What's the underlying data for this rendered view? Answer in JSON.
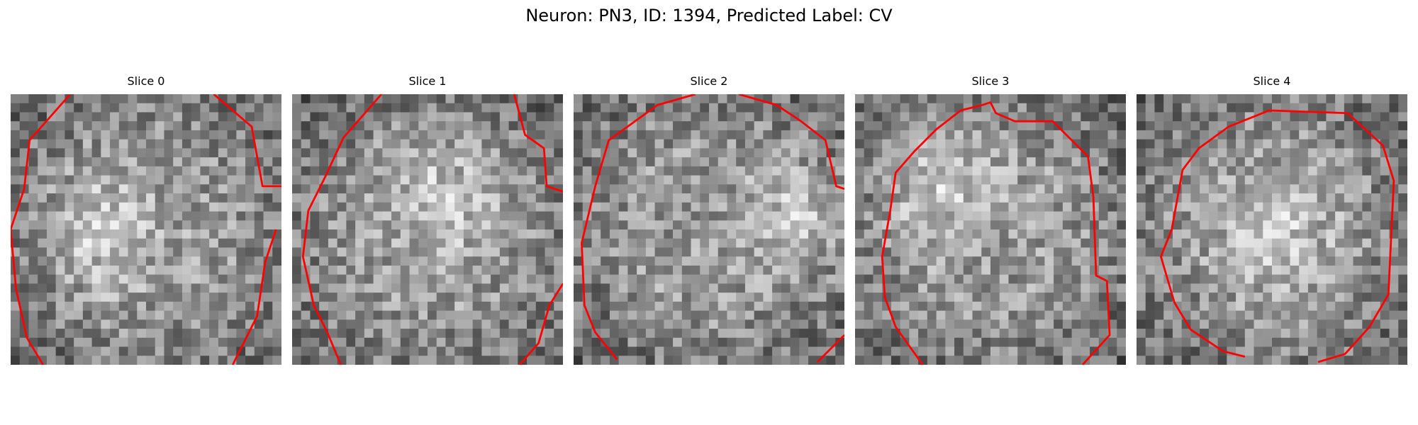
{
  "figure": {
    "title": "Neuron: PN3, ID: 1394, Predicted Label: CV",
    "contour_color": "#ff0000"
  },
  "slices": [
    {
      "title": "Slice 0",
      "bright_patch": [
        0.35,
        0.5
      ],
      "contour": [
        [
          0.22,
          0.0
        ],
        [
          0.07,
          0.17
        ],
        [
          0.05,
          0.35
        ],
        [
          0.0,
          0.5
        ],
        [
          0.02,
          0.72
        ],
        [
          0.06,
          0.9
        ],
        [
          0.12,
          1.0
        ],
        null,
        [
          0.75,
          0.0
        ],
        [
          0.89,
          0.12
        ],
        [
          0.93,
          0.34
        ],
        [
          1.0,
          0.34
        ],
        null,
        [
          0.98,
          0.5
        ],
        [
          0.94,
          0.62
        ],
        [
          0.91,
          0.82
        ],
        [
          0.82,
          1.0
        ]
      ]
    },
    {
      "title": "Slice 1",
      "bright_patch": [
        0.55,
        0.4
      ],
      "contour": [
        [
          0.33,
          0.0
        ],
        [
          0.19,
          0.16
        ],
        [
          0.12,
          0.31
        ],
        [
          0.06,
          0.43
        ],
        [
          0.04,
          0.6
        ],
        [
          0.08,
          0.78
        ],
        [
          0.13,
          0.88
        ],
        [
          0.18,
          1.0
        ],
        null,
        [
          0.82,
          0.0
        ],
        [
          0.86,
          0.15
        ],
        [
          0.93,
          0.2
        ],
        [
          0.94,
          0.34
        ],
        [
          1.0,
          0.36
        ],
        null,
        [
          1.0,
          0.7
        ],
        [
          0.95,
          0.78
        ],
        [
          0.91,
          0.92
        ],
        [
          0.84,
          1.0
        ]
      ]
    },
    {
      "title": "Slice 2",
      "bright_patch": [
        0.85,
        0.45
      ],
      "contour": [
        [
          0.45,
          0.0
        ],
        [
          0.31,
          0.04
        ],
        [
          0.13,
          0.17
        ],
        [
          0.08,
          0.34
        ],
        [
          0.03,
          0.55
        ],
        [
          0.04,
          0.78
        ],
        [
          0.08,
          0.88
        ],
        [
          0.16,
          0.98
        ],
        null,
        [
          0.61,
          0.0
        ],
        [
          0.75,
          0.04
        ],
        [
          0.84,
          0.1
        ],
        [
          0.93,
          0.17
        ],
        [
          0.97,
          0.34
        ],
        [
          1.0,
          0.35
        ],
        null,
        [
          1.0,
          0.89
        ],
        [
          0.9,
          0.99
        ]
      ]
    },
    {
      "title": "Slice 3",
      "bright_patch": [
        0.32,
        0.35
      ],
      "contour": [
        [
          0.25,
          1.0
        ],
        [
          0.15,
          0.86
        ],
        [
          0.11,
          0.75
        ],
        [
          0.1,
          0.6
        ],
        [
          0.13,
          0.43
        ],
        [
          0.15,
          0.29
        ],
        [
          0.22,
          0.21
        ],
        [
          0.3,
          0.13
        ],
        [
          0.39,
          0.06
        ],
        [
          0.47,
          0.04
        ],
        [
          0.5,
          0.03
        ],
        [
          0.52,
          0.07
        ],
        [
          0.59,
          0.1
        ],
        [
          0.73,
          0.1
        ],
        [
          0.86,
          0.23
        ],
        [
          0.88,
          0.38
        ],
        [
          0.89,
          0.67
        ],
        [
          0.93,
          0.69
        ],
        [
          0.94,
          0.89
        ],
        [
          0.84,
          1.0
        ]
      ]
    },
    {
      "title": "Slice 4",
      "bright_patch": [
        0.52,
        0.5
      ],
      "contour": [
        [
          0.4,
          0.97
        ],
        [
          0.32,
          0.95
        ],
        [
          0.2,
          0.87
        ],
        [
          0.14,
          0.77
        ],
        [
          0.09,
          0.6
        ],
        [
          0.13,
          0.5
        ],
        [
          0.17,
          0.28
        ],
        [
          0.23,
          0.2
        ],
        [
          0.34,
          0.12
        ],
        [
          0.49,
          0.06
        ],
        [
          0.78,
          0.07
        ],
        [
          0.91,
          0.19
        ],
        [
          0.95,
          0.32
        ],
        [
          0.93,
          0.74
        ],
        [
          0.86,
          0.86
        ],
        [
          0.77,
          0.96
        ],
        [
          0.67,
          0.99
        ]
      ]
    }
  ]
}
